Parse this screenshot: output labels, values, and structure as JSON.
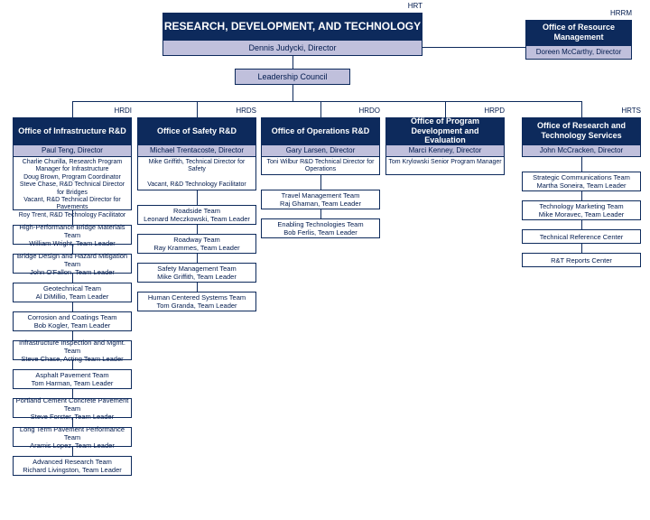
{
  "colors": {
    "dark": "#0d2a5c",
    "light": "#c0c0dc",
    "border": "#0d2a5c",
    "text": "#001a4d"
  },
  "top": {
    "code": "HRT",
    "title": "RESEARCH, DEVELOPMENT, AND TECHNOLOGY",
    "director": "Dennis Judycki, Director",
    "council": "Leadership Council"
  },
  "resource": {
    "code": "HRRM",
    "title": "Office of  Resource Management",
    "director": "Doreen McCarthy, Director"
  },
  "offices": [
    {
      "code": "HRDI",
      "title": "Office of Infrastructure R&D",
      "director": "Paul Teng, Director",
      "staff": [
        "Charlie Churilla, Research Program Manager for Infrastructure",
        "Doug Brown, Program Coordinator",
        "Steve Chase, R&D Technical Director for Bridges",
        "Vacant, R&D Technical Director for Pavements",
        "Roy Trent, R&D Technology Facilitator"
      ],
      "teams": [
        {
          "name": "High-Performance Bridge Materials Team",
          "lead": "William Wright, Team Leader"
        },
        {
          "name": "Bridge Design and Hazard Mitigation Team",
          "lead": "John O'Fallon, Team Leader"
        },
        {
          "name": "Geotechnical Team",
          "lead": "Al DiMillio, Team Leader"
        },
        {
          "name": "Corrosion and Coatings Team",
          "lead": "Bob Kogler, Team Leader"
        },
        {
          "name": "Infrastructure Inspection and Mgmt. Team",
          "lead": "Steve Chase, Acting Team Leader"
        },
        {
          "name": "Asphalt Pavement Team",
          "lead": "Tom Harman, Team Leader"
        },
        {
          "name": "Portland Cement Concrete Pavement Team",
          "lead": "Steve Forster, Team Leader"
        },
        {
          "name": "Long Term Pavement Performance Team",
          "lead": "Aramis Lopez, Team Leader"
        },
        {
          "name": "Advanced Research Team",
          "lead": "Richard Livingston, Team Leader"
        }
      ]
    },
    {
      "code": "HRDS",
      "title": "Office of Safety R&D",
      "director": "Michael Trentacoste, Director",
      "staff": [
        "Mike Griffith, Technical Director for Safety",
        "",
        "Vacant, R&D Technology Facilitator"
      ],
      "teams": [
        {
          "name": "Roadside Team",
          "lead": "Leonard Meczkowski, Team Leader"
        },
        {
          "name": "Roadway Team",
          "lead": "Ray Krammes, Team Leader"
        },
        {
          "name": "Safety Management Team",
          "lead": "Mike Griffith, Team Leader"
        },
        {
          "name": "Human Centered Systems Team",
          "lead": "Tom Granda, Team Leader"
        }
      ]
    },
    {
      "code": "HRDO",
      "title": "Office of Operations R&D",
      "director": "Gary Larsen, Director",
      "staff": [
        "Toni Wilbur R&D Technical Director for Operations"
      ],
      "teams": [
        {
          "name": "Travel Management Team",
          "lead": "Raj Ghaman, Team Leader"
        },
        {
          "name": "Enabling Technologies Team",
          "lead": "Bob Ferlis, Team Leader"
        }
      ]
    },
    {
      "code": "HRPD",
      "title": "Office of Program Development and Evaluation",
      "director": "Marci Kenney, Director",
      "staff": [
        "Tom Krylowski Senior Program Manager"
      ],
      "teams": []
    },
    {
      "code": "HRTS",
      "title": "Office of  Research and Technology Services",
      "director": "John McCracken, Director",
      "staff": [],
      "teams": [
        {
          "name": "Strategic Communications Team",
          "lead": "Martha Soneira, Team Leader"
        },
        {
          "name": "Technology Marketing Team",
          "lead": "Mike Moravec, Team Leader"
        },
        {
          "name": "Technical Reference Center",
          "lead": ""
        },
        {
          "name": "R&T Reports Center",
          "lead": ""
        }
      ]
    }
  ]
}
